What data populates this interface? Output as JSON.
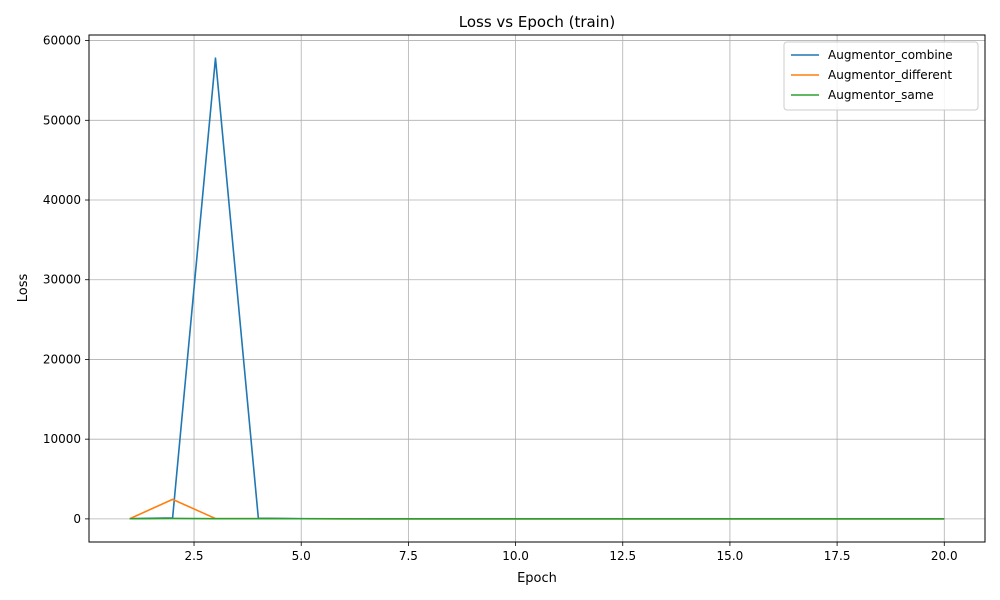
{
  "chart_data": {
    "type": "line",
    "title": "Loss vs Epoch (train)",
    "xlabel": "Epoch",
    "ylabel": "Loss",
    "xlim": [
      0.05,
      20.95
    ],
    "ylim": [
      -2900,
      60700
    ],
    "xticks": [
      2.5,
      5.0,
      7.5,
      10.0,
      12.5,
      15.0,
      17.5,
      20.0
    ],
    "xtick_labels": [
      "2.5",
      "5.0",
      "7.5",
      "10.0",
      "12.5",
      "15.0",
      "17.5",
      "20.0"
    ],
    "yticks": [
      0,
      10000,
      20000,
      30000,
      40000,
      50000,
      60000
    ],
    "ytick_labels": [
      "0",
      "10000",
      "20000",
      "30000",
      "40000",
      "50000",
      "60000"
    ],
    "grid": true,
    "legend_position": "top-right",
    "x": [
      1,
      2,
      3,
      4,
      5,
      6,
      7,
      8,
      9,
      10,
      11,
      12,
      13,
      14,
      15,
      16,
      17,
      18,
      19,
      20
    ],
    "series": [
      {
        "name": "Augmentor_combine",
        "color": "#1f77b4",
        "values": [
          30,
          120,
          57800,
          90,
          20,
          15,
          12,
          10,
          9,
          8,
          8,
          7,
          7,
          6,
          6,
          6,
          5,
          5,
          5,
          5
        ]
      },
      {
        "name": "Augmentor_different",
        "color": "#ff7f0e",
        "values": [
          20,
          2450,
          40,
          20,
          15,
          12,
          10,
          9,
          8,
          7,
          7,
          6,
          6,
          6,
          5,
          5,
          5,
          5,
          5,
          5
        ]
      },
      {
        "name": "Augmentor_same",
        "color": "#2ca02c",
        "values": [
          15,
          60,
          30,
          20,
          15,
          12,
          10,
          9,
          8,
          7,
          7,
          6,
          6,
          6,
          5,
          5,
          5,
          5,
          5,
          5
        ]
      }
    ]
  }
}
